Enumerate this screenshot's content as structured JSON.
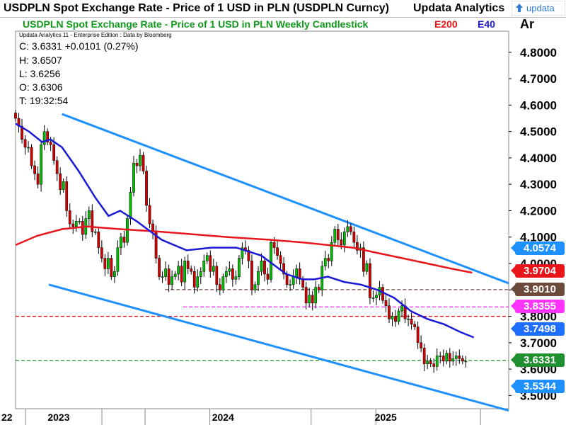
{
  "header": {
    "title": "USDPLN Spot Exchange Rate - Price of 1 USD in PLN (USDPLN Curncy)",
    "brand": "Updata Analytics",
    "logo_text": "updata"
  },
  "subheader": {
    "chart_title": "USDPLN Spot Exchange Rate - Price of 1 USD in PLN Weekly Candlestick",
    "legend_e200": "E200",
    "legend_e40": "E40",
    "axis_unit": "Ar"
  },
  "info": {
    "source_line": "Updata Analytics 11 - Enterprise Edition : Data by Bloomberg",
    "close": "C: 3.6331  +0.0101 (0.27%)",
    "high": "H: 3.6507",
    "low": "L: 3.6256",
    "open": "O: 3.6306",
    "time": "T: 19:32:54"
  },
  "colors": {
    "candle_up": "#00c000",
    "candle_down": "#d40000",
    "e200": "#e8161b",
    "e40": "#1a1ad6",
    "channel": "#1e90ff"
  },
  "badges": [
    {
      "label": "4.0574",
      "value": 4.0574,
      "color": "#1e90ff"
    },
    {
      "label": "3.9704",
      "value": 3.9704,
      "color": "#e8161b"
    },
    {
      "label": "3.9010",
      "value": 3.901,
      "color": "#6b4a3c"
    },
    {
      "label": "3.8355",
      "value": 3.8355,
      "color": "#ff33ff"
    },
    {
      "label": "3.7498",
      "value": 3.7498,
      "color": "#1e6fff"
    },
    {
      "label": "3.6331",
      "value": 3.6331,
      "color": "#1f8f2f"
    },
    {
      "label": "3.5344",
      "value": 3.5344,
      "color": "#1e90ff"
    }
  ],
  "chart_data": {
    "type": "candlestick",
    "y_ticks": [
      "4.8000",
      "4.7000",
      "4.6000",
      "4.5000",
      "4.4000",
      "4.3000",
      "4.2000",
      "4.1000",
      "4.0000",
      "3.9000",
      "3.8000",
      "3.7000",
      "3.6000",
      "3.5000"
    ],
    "ylim": [
      3.45,
      4.88
    ],
    "xlim": [
      2022.82,
      2025.79
    ],
    "x_labels": [
      {
        "label": "22",
        "x": 2022.82
      },
      {
        "label": "2023",
        "x": 2023.09
      },
      {
        "label": "2024",
        "x": 2024.08
      },
      {
        "label": "2025",
        "x": 2025.06
      }
    ],
    "x_dividers": [
      2022.88,
      2023.34,
      2023.6,
      2023.99,
      2024.6,
      2024.99,
      2025.62
    ],
    "horizontal_levels": [
      {
        "value": 3.901,
        "color": "#6b4a3c",
        "dash": "dashed",
        "x_start": 2023.72
      },
      {
        "value": 3.8355,
        "color": "#ff33ff",
        "dash": "dashed",
        "x_start": 2023.83
      },
      {
        "value": 3.8,
        "color": "#e8161b",
        "dash": "dashed",
        "x_start": 2022.82
      },
      {
        "value": 3.6331,
        "color": "#1f8f2f",
        "dash": "dashed",
        "x_start": 2022.82
      }
    ],
    "channel_lines": [
      {
        "x": [
          2023.1,
          2025.79
        ],
        "y": [
          4.566,
          3.925
        ]
      },
      {
        "x": [
          2023.02,
          2025.79
        ],
        "y": [
          3.92,
          3.443
        ]
      }
    ],
    "candles": {
      "start": 2022.82,
      "step": 0.01923,
      "closes": [
        4.55,
        4.52,
        4.47,
        4.44,
        4.44,
        4.37,
        4.34,
        4.3,
        4.45,
        4.5,
        4.46,
        4.45,
        4.39,
        4.34,
        4.28,
        4.31,
        4.2,
        4.15,
        4.14,
        4.16,
        4.16,
        4.11,
        4.17,
        4.2,
        4.12,
        4.12,
        4.06,
        4.02,
        3.98,
        4.02,
        3.95,
        3.97,
        4.06,
        4.1,
        4.08,
        4.17,
        4.27,
        4.38,
        4.37,
        4.41,
        4.35,
        4.22,
        4.15,
        4.12,
        4.02,
        3.95,
        3.95,
        3.98,
        3.92,
        3.95,
        3.96,
        3.99,
        3.93,
        4.01,
        3.98,
        3.97,
        3.91,
        3.95,
        3.97,
        4.01,
        4.03,
        3.97,
        3.99,
        3.92,
        3.9,
        3.95,
        3.97,
        3.98,
        3.94,
        3.95,
        4.02,
        4.06,
        4.05,
        4.01,
        3.9,
        3.92,
        3.97,
        4.01,
        3.96,
        3.94,
        4.08,
        4.06,
        4.03,
        4.0,
        3.96,
        3.92,
        3.92,
        3.95,
        3.98,
        3.94,
        3.91,
        3.85,
        3.88,
        3.85,
        3.91,
        3.9,
        3.99,
        4.02,
        4.01,
        4.08,
        4.13,
        4.09,
        4.07,
        4.12,
        4.14,
        4.12,
        4.08,
        4.05,
        4.06,
        3.97,
        4.0,
        3.87,
        3.87,
        3.88,
        3.91,
        3.86,
        3.84,
        3.79,
        3.8,
        3.78,
        3.82,
        3.84,
        3.79,
        3.79,
        3.77,
        3.76,
        3.7,
        3.68,
        3.62,
        3.63,
        3.62,
        3.61,
        3.65,
        3.65,
        3.63,
        3.66,
        3.63,
        3.64,
        3.65,
        3.64,
        3.63,
        3.63
      ]
    },
    "series": [
      {
        "name": "E200",
        "x": [
          2022.82,
          2022.95,
          2023.1,
          2023.25,
          2023.45,
          2023.7,
          2023.9,
          2024.1,
          2024.35,
          2024.55,
          2024.7,
          2024.85,
          2025.0,
          2025.15,
          2025.3,
          2025.45,
          2025.57
        ],
        "y": [
          4.07,
          4.105,
          4.13,
          4.14,
          4.13,
          4.12,
          4.11,
          4.1,
          4.09,
          4.08,
          4.07,
          4.06,
          4.04,
          4.02,
          4.0,
          3.98,
          3.965
        ]
      },
      {
        "name": "E40",
        "x": [
          2022.82,
          2022.9,
          2022.98,
          2023.03,
          2023.1,
          2023.2,
          2023.3,
          2023.38,
          2023.45,
          2023.55,
          2023.7,
          2023.85,
          2024.0,
          2024.15,
          2024.3,
          2024.45,
          2024.55,
          2024.62,
          2024.7,
          2024.8,
          2024.9,
          2025.0,
          2025.1,
          2025.2,
          2025.3,
          2025.4,
          2025.5,
          2025.58
        ],
        "y": [
          4.53,
          4.5,
          4.46,
          4.47,
          4.44,
          4.35,
          4.25,
          4.18,
          4.2,
          4.16,
          4.09,
          4.05,
          4.06,
          4.06,
          4.03,
          3.96,
          3.94,
          3.94,
          3.95,
          3.93,
          3.92,
          3.9,
          3.87,
          3.82,
          3.79,
          3.77,
          3.74,
          3.72
        ]
      }
    ]
  }
}
